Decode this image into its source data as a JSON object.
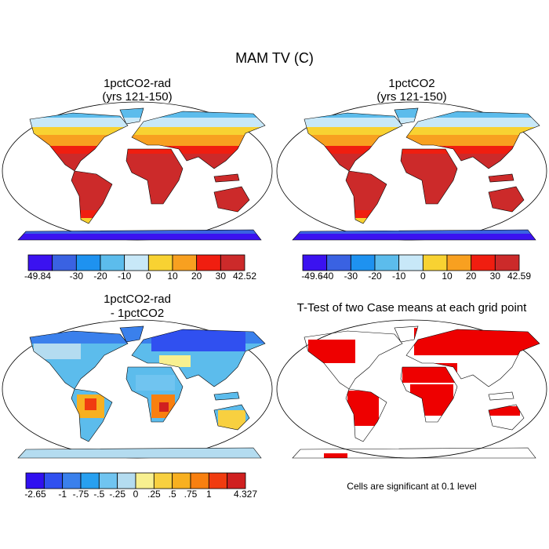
{
  "title": "MAM TV (C)",
  "panels": [
    {
      "title": [
        "1pctCO2-rad",
        "(yrs 121-150)"
      ],
      "colorbar": {
        "colors": [
          "#3b12f0",
          "#3a62e2",
          "#1e92f0",
          "#5cbcec",
          "#c8e8f8",
          "#f8d232",
          "#f8a020",
          "#f01e10",
          "#cc2a2a"
        ],
        "labels": [
          "-49.84",
          null,
          "-30",
          "-20",
          "-10",
          "0",
          "10",
          "20",
          "30",
          "42.52"
        ]
      }
    },
    {
      "title": [
        "1pctCO2",
        "(yrs 121-150)"
      ],
      "colorbar": {
        "colors": [
          "#3b12f0",
          "#3a62e2",
          "#1e92f0",
          "#5cbcec",
          "#c8e8f8",
          "#f8d232",
          "#f8a020",
          "#f01e10",
          "#cc2a2a"
        ],
        "labels": [
          "-49.6",
          "-40",
          "-30",
          "-20",
          "-10",
          "0",
          "10",
          "20",
          "30",
          "42.59"
        ]
      }
    },
    {
      "title": [
        "1pctCO2-rad",
        "- 1pctCO2"
      ],
      "colorbar": {
        "colors": [
          "#3010f0",
          "#3050f0",
          "#3a80ec",
          "#28a0f0",
          "#70c4f0",
          "#b4dcf0",
          "#f8f090",
          "#f8d040",
          "#f8b020",
          "#f88010",
          "#f03c10",
          "#d02020"
        ],
        "labels": [
          "-2.65",
          null,
          "-1",
          "-.75",
          "-.5",
          "-.25",
          "0",
          ".25",
          ".5",
          ".75",
          "1",
          null,
          "4.327"
        ]
      }
    },
    {
      "title": [
        "T-Test of two Case means at each grid point"
      ],
      "note": "Cells are significant at 0.1 level"
    }
  ]
}
